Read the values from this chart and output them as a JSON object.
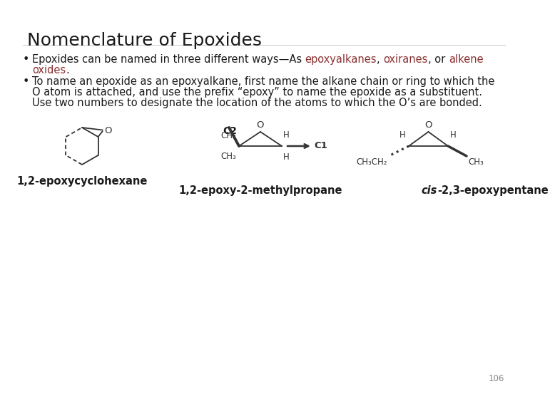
{
  "title": "Nomenclature of Epoxides",
  "title_fontsize": 18,
  "title_color": "#1a1a1a",
  "b1_pre": "Epoxides can be named in three different ways—As ",
  "b1_epoxy": "epoxyalkanes",
  "b1_mid1": ", ",
  "b1_oxi": "oxiranes",
  "b1_mid2": ", or ",
  "b1_alkene": "alkene",
  "b1_line2_1": "oxides",
  "b1_line2_2": ".",
  "red_color": "#8B3030",
  "b2_line1": "To name an epoxide as an epoxyalkane, first name the alkane chain or ring to which the",
  "b2_line2": "O atom is attached, and use the prefix “epoxy” to name the epoxide as a substituent.",
  "b2_line3": "Use two numbers to designate the location of the atoms to which the O’s are bonded.",
  "label1": "1,2-epoxycyclohexane",
  "label2": "1,2-epoxy-2-methylpropane",
  "label3_italic": "cis",
  "label3_rest": "-2,3-epoxypentane",
  "page_number": "106",
  "background_color": "#ffffff",
  "text_color": "#1a1a1a",
  "body_fontsize": 10.5,
  "label_fontsize": 10.5,
  "struct_color": "#333333"
}
